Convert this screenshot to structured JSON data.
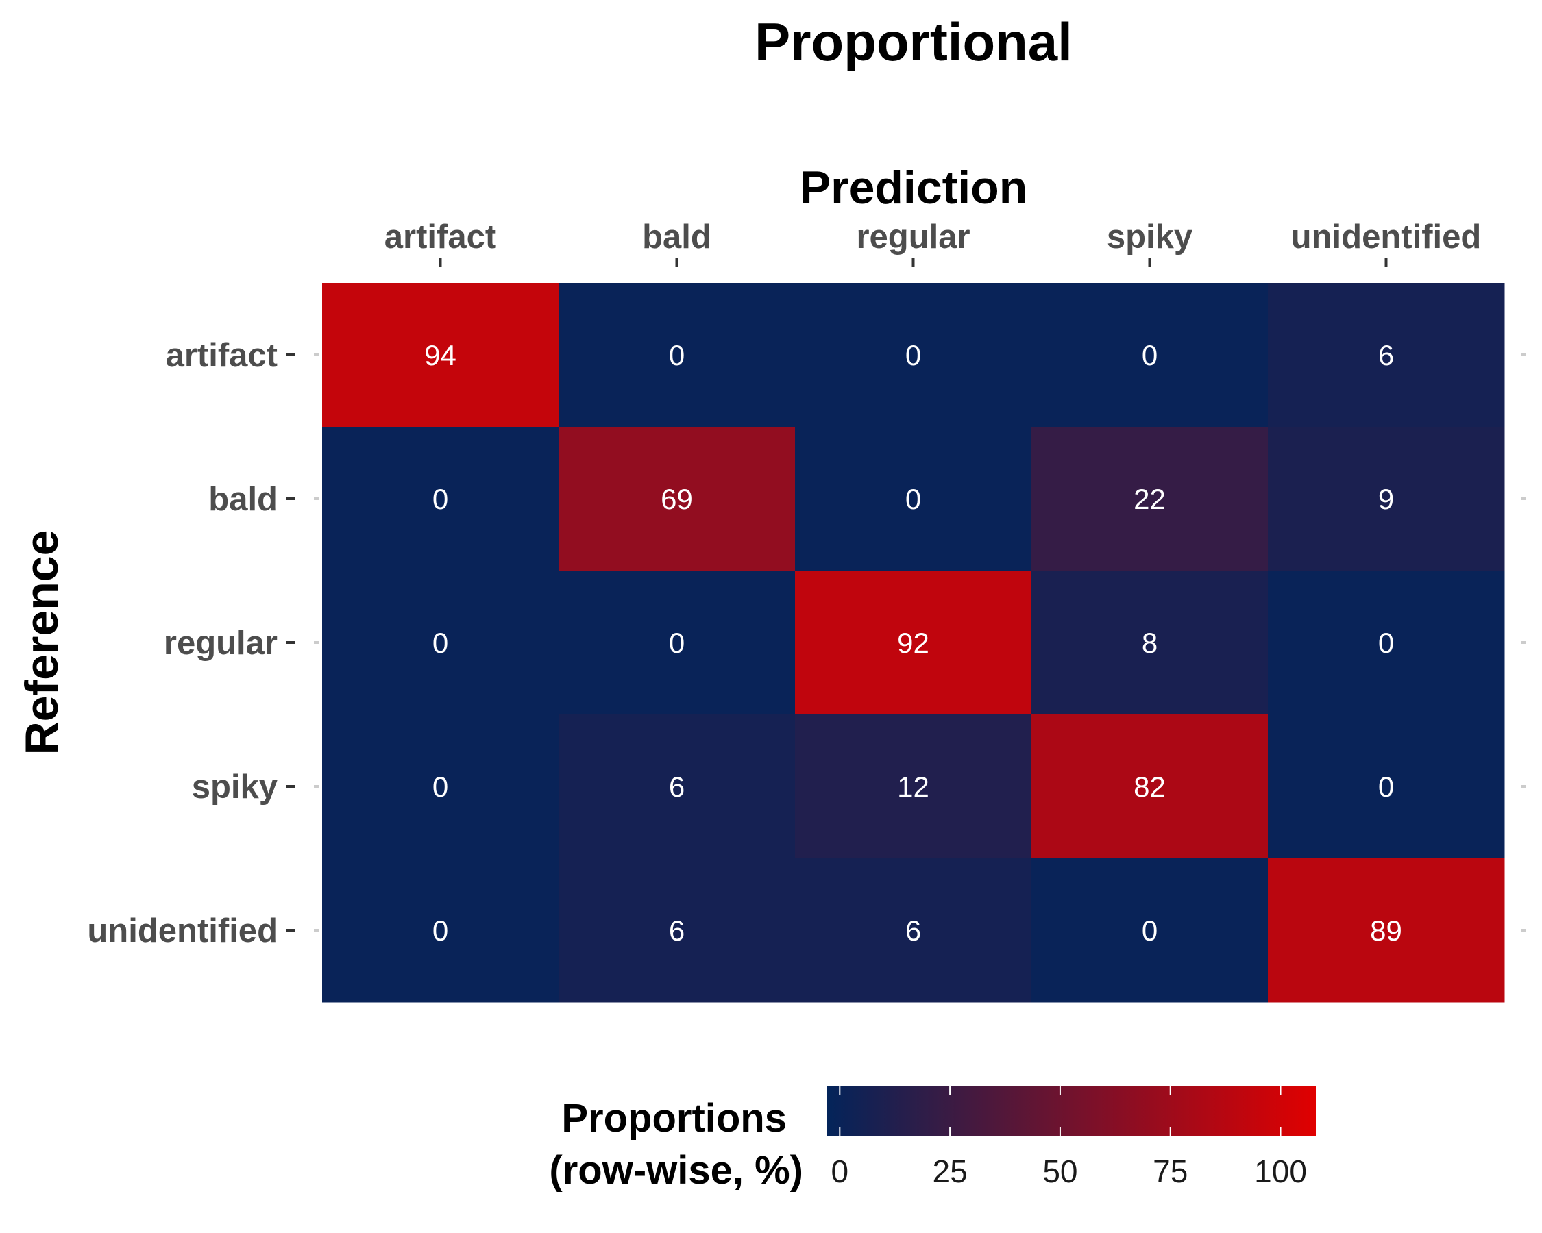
{
  "chart_data": {
    "type": "heatmap",
    "title": "Proportional",
    "xlabel": "Prediction",
    "ylabel": "Reference",
    "x_categories": [
      "artifact",
      "bald",
      "regular",
      "spiky",
      "unidentified"
    ],
    "y_categories": [
      "artifact",
      "bald",
      "regular",
      "spiky",
      "unidentified"
    ],
    "values": [
      [
        94,
        0,
        0,
        0,
        6
      ],
      [
        0,
        69,
        0,
        22,
        9
      ],
      [
        0,
        0,
        92,
        8,
        0
      ],
      [
        0,
        6,
        12,
        82,
        0
      ],
      [
        0,
        6,
        6,
        0,
        89
      ]
    ],
    "x_axis_position": "top",
    "legend": {
      "title_line1": "Proportions",
      "title_line2": "(row-wise, %)",
      "ticks": [
        0,
        25,
        50,
        75,
        100
      ],
      "range": [
        -3,
        108
      ],
      "position": "bottom"
    },
    "color_low": "#03245A",
    "color_high": "#E00000"
  }
}
